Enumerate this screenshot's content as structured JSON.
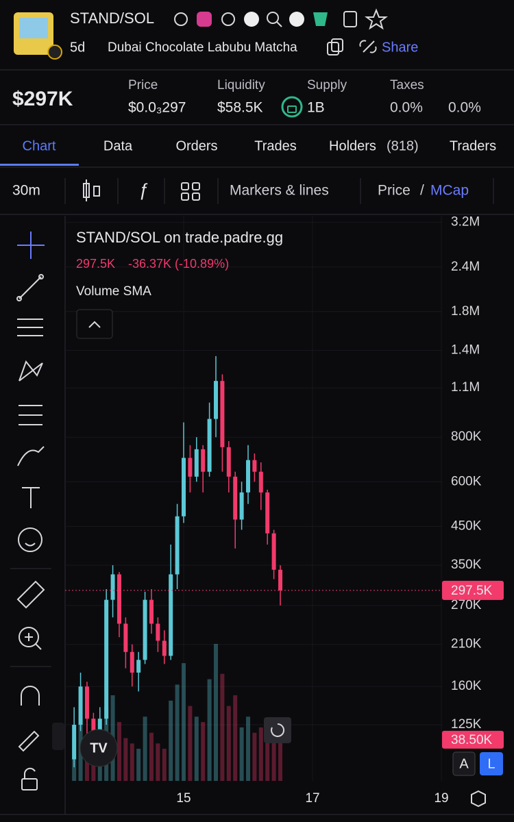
{
  "header": {
    "pair": "STAND/SOL",
    "age": "5d",
    "token_name": "Dubai Chocolate Labubu Matcha",
    "share": "Share"
  },
  "stats": {
    "market_cap": "$297K",
    "price_label": "Price",
    "price": "$0.0₃297",
    "liquidity_label": "Liquidity",
    "liquidity": "$58.5K",
    "supply_label": "Supply",
    "supply": "1B",
    "taxes_label": "Taxes",
    "buy_tax": "0.0%",
    "sell_tax": "0.0%"
  },
  "tabs": [
    "Chart",
    "Data",
    "Orders",
    "Trades",
    "Holders",
    "Traders"
  ],
  "holders_count": "(818)",
  "toolbar": {
    "interval": "30m",
    "markers": "Markers & lines",
    "price": "Price",
    "separator": "/",
    "mcap": "MCap"
  },
  "chart_data": {
    "type": "candlestick",
    "title": "STAND/SOL on trade.padre.gg",
    "last": "297.5K",
    "change": "-36.37K (-10.89%)",
    "indicator": "Volume SMA",
    "x": [
      13.3,
      13.4,
      13.5,
      13.6,
      13.7,
      13.8,
      13.9,
      14.0,
      14.1,
      14.2,
      14.3,
      14.4,
      14.5,
      14.6,
      14.7,
      14.8,
      14.9,
      15.0,
      15.1,
      15.2,
      15.3,
      15.4,
      15.5,
      15.6,
      15.7,
      15.8,
      15.9,
      16.0,
      16.1,
      16.2,
      16.3,
      16.4,
      16.5
    ],
    "open": [
      100000,
      125000,
      160000,
      130000,
      115000,
      130000,
      280000,
      330000,
      240000,
      200000,
      175000,
      190000,
      280000,
      240000,
      215000,
      195000,
      330000,
      480000,
      700000,
      620000,
      740000,
      640000,
      900000,
      1150000,
      750000,
      620000,
      470000,
      560000,
      690000,
      640000,
      560000,
      430000,
      340000
    ],
    "high": [
      140000,
      175000,
      165000,
      135000,
      140000,
      300000,
      350000,
      335000,
      250000,
      210000,
      200000,
      295000,
      300000,
      250000,
      230000,
      400000,
      520000,
      880000,
      760000,
      800000,
      760000,
      1000000,
      1350000,
      1200000,
      780000,
      640000,
      600000,
      760000,
      720000,
      680000,
      570000,
      440000,
      350000
    ],
    "low": [
      95000,
      120000,
      115000,
      100000,
      110000,
      125000,
      250000,
      220000,
      180000,
      160000,
      155000,
      185000,
      225000,
      200000,
      185000,
      190000,
      300000,
      460000,
      560000,
      600000,
      560000,
      620000,
      800000,
      640000,
      560000,
      390000,
      440000,
      520000,
      600000,
      500000,
      400000,
      320000,
      270000
    ],
    "close": [
      125000,
      160000,
      130000,
      115000,
      130000,
      280000,
      330000,
      240000,
      200000,
      175000,
      190000,
      280000,
      240000,
      215000,
      195000,
      330000,
      480000,
      700000,
      620000,
      740000,
      640000,
      900000,
      1150000,
      750000,
      620000,
      470000,
      560000,
      690000,
      640000,
      560000,
      430000,
      340000,
      297500
    ],
    "volume": [
      40000,
      60000,
      30000,
      25000,
      28000,
      70000,
      80000,
      55000,
      40000,
      35000,
      30000,
      60000,
      45000,
      35000,
      30000,
      75000,
      90000,
      110000,
      70000,
      60000,
      55000,
      95000,
      128000,
      100000,
      70000,
      80000,
      50000,
      60000,
      45000,
      50000,
      55000,
      45000,
      38500
    ],
    "up_color": "#5cc8d6",
    "down_color": "#f23a6b",
    "log_scale": true,
    "grid": true,
    "ylim": [
      87000,
      3340000
    ],
    "yticks": [
      {
        "value": 3200000,
        "label": "3.2M"
      },
      {
        "value": 2400000,
        "label": "2.4M"
      },
      {
        "value": 1800000,
        "label": "1.8M"
      },
      {
        "value": 1400000,
        "label": "1.4M"
      },
      {
        "value": 1100000,
        "label": "1.1M"
      },
      {
        "value": 800000,
        "label": "800K"
      },
      {
        "value": 600000,
        "label": "600K"
      },
      {
        "value": 450000,
        "label": "450K"
      },
      {
        "value": 350000,
        "label": "350K"
      },
      {
        "value": 270000,
        "label": "270K"
      },
      {
        "value": 210000,
        "label": "210K"
      },
      {
        "value": 160000,
        "label": "160K"
      },
      {
        "value": 125000,
        "label": "125K"
      }
    ],
    "xlim": [
      13.16,
      19.01
    ],
    "xticks": [
      15,
      17,
      19
    ],
    "price_marker": {
      "value": 297500,
      "label": "297.5K"
    },
    "volume_marker": {
      "value": 38500,
      "label": "38.50K"
    }
  },
  "scale_buttons": [
    "A",
    "L"
  ]
}
